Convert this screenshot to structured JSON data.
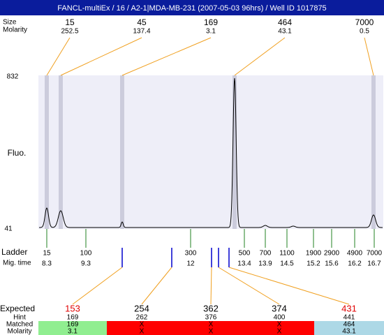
{
  "title": "FANCL-multiEx / 16 / A2-1|MDA-MB-231 (2007-05-03 96hrs) / Well ID 1017875",
  "peaks": {
    "labels": [
      "Size",
      "Molarity"
    ],
    "columns": [
      {
        "size": "15",
        "molarity": "252.5"
      },
      {
        "size": "45",
        "molarity": "137.4"
      },
      {
        "size": "169",
        "molarity": "3.1"
      },
      {
        "size": "464",
        "molarity": "43.1"
      },
      {
        "size": "7000",
        "molarity": "0.5"
      }
    ]
  },
  "plot": {
    "y_label": "Fluo.",
    "y_top": "832",
    "y_bottom": "41"
  },
  "ladder": {
    "labels": [
      "Ladder",
      "Mig. time"
    ],
    "columns": [
      {
        "size": "15",
        "time": "8.3"
      },
      {
        "size": "100",
        "time": "9.3"
      },
      {
        "size": "300",
        "time": "12"
      },
      {
        "size": "500",
        "time": "13.4"
      },
      {
        "size": "700",
        "time": "13.9"
      },
      {
        "size": "1100",
        "time": "14.5"
      },
      {
        "size": "1900",
        "time": "15.2"
      },
      {
        "size": "2900",
        "time": "15.6"
      },
      {
        "size": "4900",
        "time": "16.2"
      },
      {
        "size": "7000",
        "time": "16.7"
      }
    ]
  },
  "table": {
    "row_labels": [
      "Expected",
      "Hint",
      "Matched",
      "Molarity"
    ],
    "columns": [
      {
        "expected": "153",
        "hint": "169",
        "matched": "169",
        "molarity": "3.1",
        "expected_color": "#e00000"
      },
      {
        "expected": "254",
        "hint": "262",
        "matched": "X",
        "molarity": "X",
        "expected_color": "#000000"
      },
      {
        "expected": "362",
        "hint": "376",
        "matched": "X",
        "molarity": "X",
        "expected_color": "#000000"
      },
      {
        "expected": "374",
        "hint": "400",
        "matched": "X",
        "molarity": "X",
        "expected_color": "#000000"
      },
      {
        "expected": "431",
        "hint": "441",
        "matched": "464",
        "molarity": "43.1",
        "expected_color": "#e00000"
      }
    ]
  }
}
